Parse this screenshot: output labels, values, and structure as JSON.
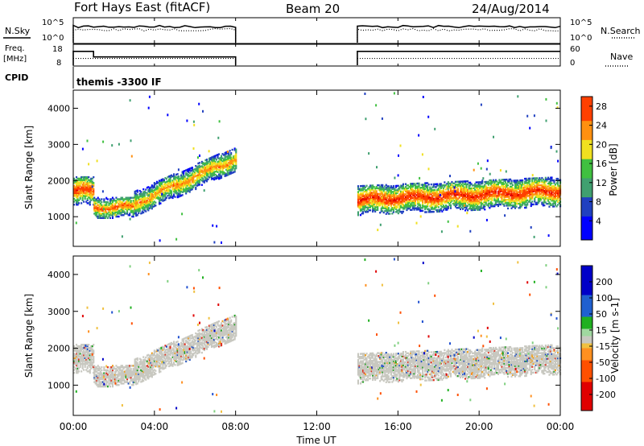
{
  "header": {
    "station": "Fort Hays East (fitACF)",
    "beam": "Beam 20",
    "date": "24/Aug/2014"
  },
  "side_labels": {
    "nsky": "N.Sky",
    "freq_line1": "Freq.",
    "freq_line2": "[MHz]",
    "cpid": "CPID",
    "nsearch": "N.Search",
    "nave": "Nave"
  },
  "cpid_text": "themis -3300 IF",
  "colors": {
    "noise_line": "#000000",
    "gray_velocity": "#c8c8c0"
  },
  "chart_data": [
    {
      "type": "line",
      "title": "N.Sky / N.Search",
      "x_ticks": [
        "00:00",
        "04:00",
        "08:00",
        "12:00",
        "16:00",
        "20:00",
        "00:00"
      ],
      "left_ticks": [
        "10^5",
        "10^0"
      ],
      "right_ticks": [
        "10^5",
        "10^0"
      ],
      "series": [
        {
          "name": "N.Sky",
          "style": "solid",
          "segments": [
            {
              "start": "00:00",
              "end": "08:00"
            },
            {
              "start": "14:00",
              "end": "24:00"
            }
          ],
          "level": "high"
        },
        {
          "name": "N.Search",
          "style": "dotted",
          "segments": [
            {
              "start": "00:00",
              "end": "08:00"
            },
            {
              "start": "14:00",
              "end": "24:00"
            }
          ],
          "level": "high"
        }
      ]
    },
    {
      "type": "line",
      "title": "Freq. / Nave",
      "left_ticks": [
        "18",
        "8"
      ],
      "right_ticks": [
        "60",
        "0"
      ],
      "ylabel_left": "Freq. [MHz]",
      "ylabel_right": "Nave",
      "series": [
        {
          "name": "Freq.",
          "style": "solid",
          "x": [
            "00:00",
            "01:00",
            "01:00",
            "08:00",
            "14:00",
            "24:00"
          ],
          "y": [
            15.5,
            15.5,
            12.5,
            12.5,
            15.5,
            15.5
          ]
        },
        {
          "name": "Nave",
          "style": "dotted",
          "x": [
            "00:00",
            "08:00",
            "14:00",
            "24:00"
          ],
          "y": [
            22,
            22,
            22,
            22
          ]
        }
      ],
      "data_gap": [
        "08:00",
        "14:00"
      ]
    },
    {
      "type": "heatmap",
      "title": "Power",
      "ylabel": "Slant Range [km]",
      "y_ticks": [
        1000,
        2000,
        3000,
        4000
      ],
      "ylim": [
        180,
        4500
      ],
      "xlim": [
        "00:00",
        "24:00"
      ],
      "colorbar_label": "Power [dB]",
      "colorbar_ticks": [
        4,
        8,
        12,
        16,
        20,
        24,
        28
      ],
      "colorbar_range": [
        0,
        30
      ],
      "bands": [
        {
          "x_start_h": 0.0,
          "x_end_h": 1.0,
          "center_km": 1700,
          "width_km": 420,
          "peak_db": 29
        },
        {
          "x_start_h": 1.0,
          "x_end_h": 3.0,
          "center_km": 1250,
          "width_km": 300,
          "peak_db": 26
        },
        {
          "x_start_h": 3.0,
          "x_end_h": 8.0,
          "center_km_start": 1350,
          "center_km_end": 2600,
          "width_km": 350,
          "peak_db": 24
        },
        {
          "x_start_h": 14.0,
          "x_end_h": 24.0,
          "center_km_start": 1450,
          "center_km_end": 1700,
          "width_km": 420,
          "peak_db": 30
        }
      ],
      "data_gap": [
        "08:00",
        "14:00"
      ]
    },
    {
      "type": "heatmap",
      "title": "Velocity",
      "ylabel": "Slant Range [km]",
      "y_ticks": [
        1000,
        2000,
        3000,
        4000
      ],
      "ylim": [
        180,
        4500
      ],
      "xlabel": "Time UT",
      "x_ticks": [
        "00:00",
        "04:00",
        "08:00",
        "12:00",
        "16:00",
        "20:00",
        "00:00"
      ],
      "colorbar_label": "Velocity [m s-1]",
      "colorbar_ticks": [
        200,
        100,
        50,
        15,
        -15,
        -50,
        -100,
        -200
      ],
      "colorbar_range": [
        -250,
        250
      ],
      "dominant_velocity_ms": 0,
      "data_gap": [
        "08:00",
        "14:00"
      ]
    }
  ]
}
